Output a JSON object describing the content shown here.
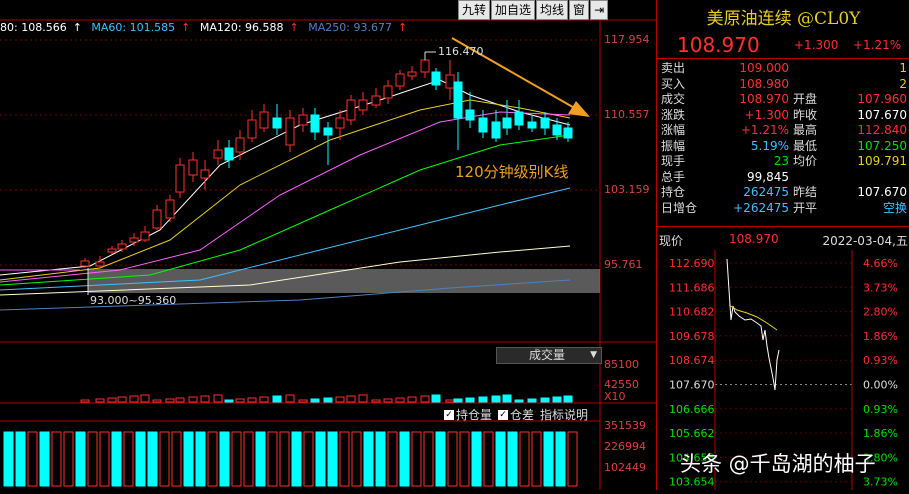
{
  "chart": {
    "ma_labels": {
      "ma_partial": "80: 108.566",
      "ma60": "MA60: 101.585",
      "ma120": "MA120: 96.588",
      "ma250": "MA250: 93.677"
    },
    "toolbar": [
      "九转",
      "加自选",
      "均线",
      "窗"
    ],
    "price_axis": [
      "117.954",
      "110.557",
      "103.159",
      "95.761"
    ],
    "volume_axis": [
      "85100",
      "42550",
      "X10"
    ],
    "oi_axis": [
      "351539",
      "226994",
      "102449"
    ],
    "high_label": "116.470",
    "zone_label": "93.000~95.360",
    "annotation": "120分钟级别K线",
    "volume_select": "成交量",
    "checkbox_oi": "持仓量",
    "checkbox_diff": "仓差",
    "indicator_help": "指标说明",
    "colors": {
      "up": "#ff3030",
      "down": "#00ffff",
      "annotation": "#e8a020"
    }
  },
  "quote": {
    "title": "美原油连续 @CL0Y",
    "price": "108.970",
    "change": "+1.300",
    "change_pct": "+1.21%",
    "rows": [
      {
        "l": "卖出",
        "v": "109.000",
        "vc": "red",
        "l2": "",
        "v2": "1",
        "v2c": "yellow"
      },
      {
        "l": "买入",
        "v": "108.980",
        "vc": "red",
        "l2": "",
        "v2": "2",
        "v2c": "yellow"
      },
      {
        "l": "成交",
        "v": "108.970",
        "vc": "red",
        "l2": "开盘",
        "v2": "107.960",
        "v2c": "red"
      },
      {
        "l": "涨跌",
        "v": "+1.300",
        "vc": "red",
        "l2": "昨收",
        "v2": "107.670",
        "v2c": "white"
      },
      {
        "l": "涨幅",
        "v": "+1.21%",
        "vc": "red",
        "l2": "最高",
        "v2": "112.840",
        "v2c": "red"
      },
      {
        "l": "振幅",
        "v": "5.19%",
        "vc": "cyan",
        "l2": "最低",
        "v2": "107.250",
        "v2c": "green"
      },
      {
        "l": "现手",
        "v": "23",
        "vc": "green",
        "l2": "均价",
        "v2": "109.791",
        "v2c": "yellow"
      },
      {
        "l": "总手",
        "v": "99,845",
        "vc": "white",
        "l2": "",
        "v2": "",
        "v2c": "white"
      },
      {
        "l": "持仓",
        "v": "262475",
        "vc": "cyan",
        "l2": "昨结",
        "v2": "107.670",
        "v2c": "white"
      },
      {
        "l": "日增仓",
        "v": "+262475",
        "vc": "cyan",
        "l2": "开平",
        "v2": "空换",
        "v2c": "cyan"
      }
    ],
    "intraday": {
      "label": "现价",
      "value": "108.970",
      "date": "2022-03-04,五",
      "left_axis": [
        "112.690",
        "111.686",
        "110.682",
        "109.678",
        "108.674",
        "107.670",
        "106.666",
        "105.662",
        "104.658",
        "103.654"
      ],
      "right_axis": [
        "4.66%",
        "3.73%",
        "2.80%",
        "1.86%",
        "0.93%",
        "0.00%",
        "0.93%",
        "1.86%",
        "2.80%",
        "3.73%"
      ]
    }
  },
  "watermark": "头条 @千岛湖的柚子"
}
